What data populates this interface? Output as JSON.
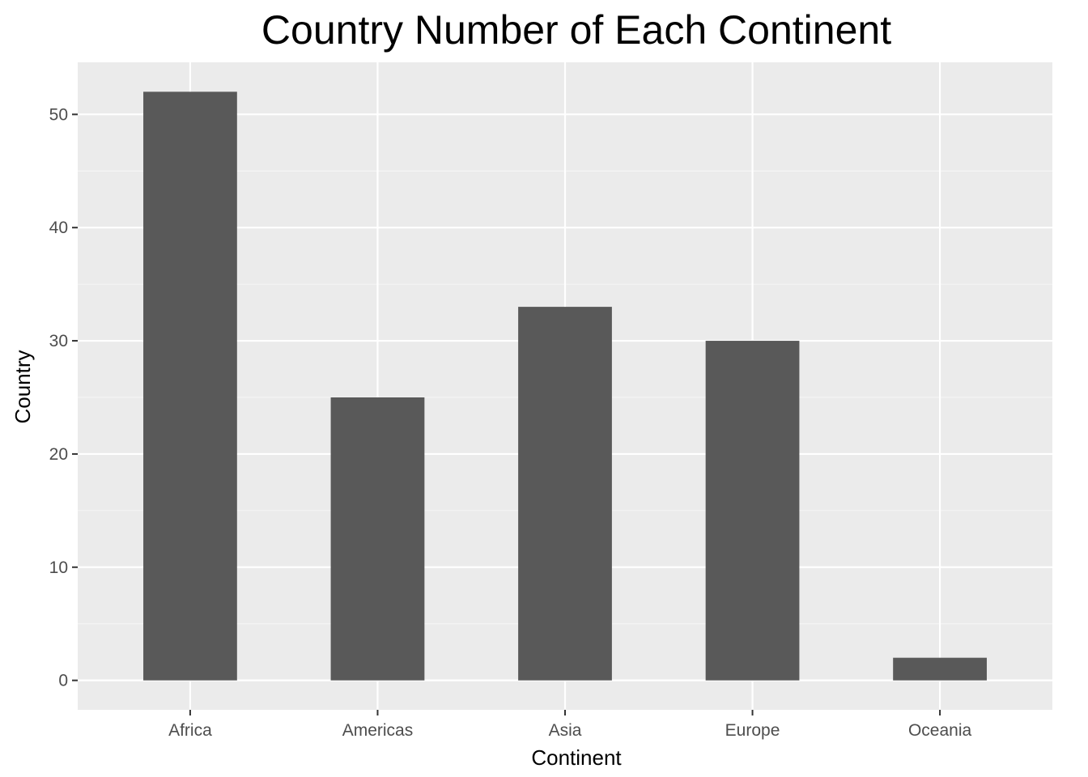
{
  "chart_data": {
    "type": "bar",
    "title": "Country Number of Each Continent",
    "xlabel": "Continent",
    "ylabel": "Country",
    "categories": [
      "Africa",
      "Americas",
      "Asia",
      "Europe",
      "Oceania"
    ],
    "values": [
      52,
      25,
      33,
      30,
      2
    ],
    "ylim": [
      -2.6,
      54.6
    ],
    "yticks": [
      0,
      10,
      20,
      30,
      40,
      50
    ],
    "grid": true,
    "legend": "none",
    "colors": {
      "bar": "#595959",
      "panel_background": "#ebebeb",
      "grid_major": "#ffffff",
      "grid_minor": "#f5f5f5",
      "tick_text": "#4d4d4d",
      "tick_mark": "#333333"
    }
  }
}
